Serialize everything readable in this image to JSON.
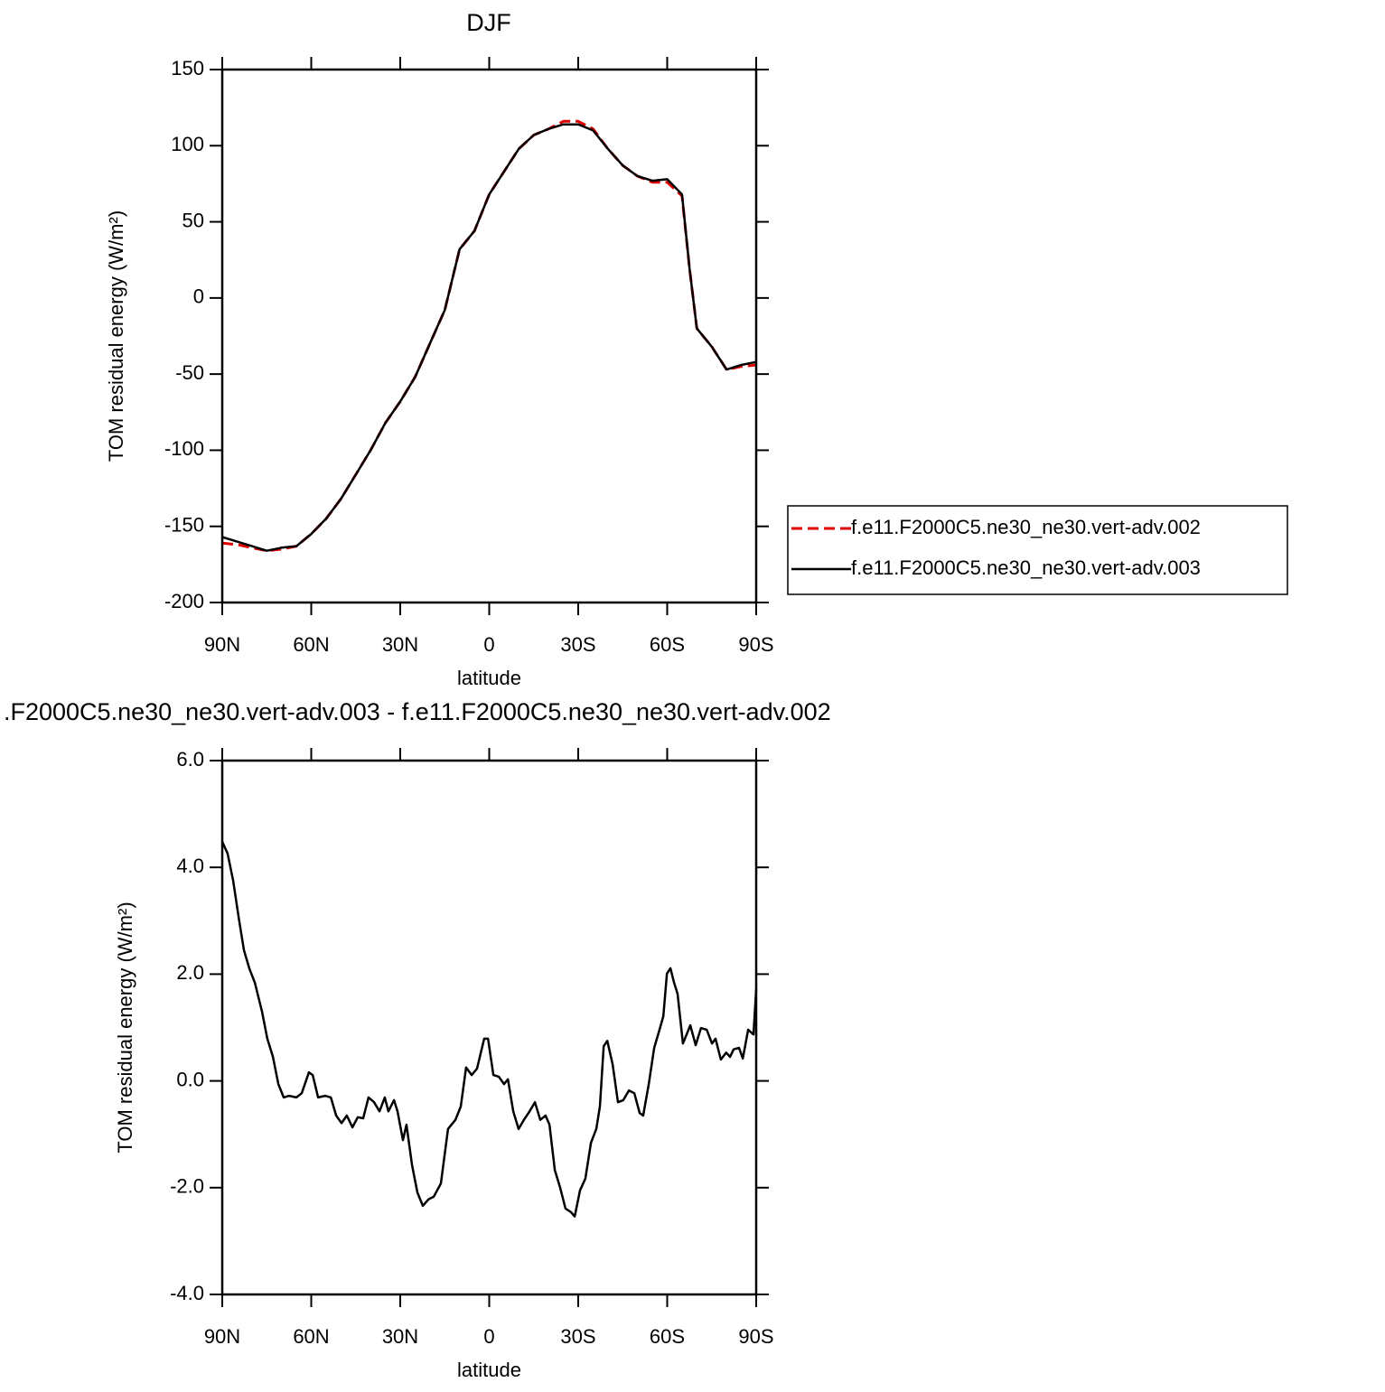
{
  "chart_data": [
    {
      "type": "line",
      "title": "DJF",
      "xlabel": "latitude",
      "ylabel": "TOM residual energy (W/m²)",
      "x": [
        90,
        85,
        80,
        75,
        70,
        65,
        60,
        55,
        50,
        45,
        40,
        35,
        30,
        25,
        20,
        15,
        10,
        5,
        0,
        -5,
        -10,
        -15,
        -20,
        -25,
        -30,
        -35,
        -40,
        -45,
        -50,
        -55,
        -60,
        -65,
        -67.5,
        -70,
        -75,
        -80,
        -85,
        -90
      ],
      "series": [
        {
          "name": "f.e11.F2000C5.ne30_ne30.vert-adv.002",
          "color": "#e00000",
          "linestyle": "dashed",
          "values": [
            -161,
            -162,
            -164,
            -166,
            -165,
            -163,
            -155,
            -145,
            -132,
            -116,
            -100,
            -82,
            -68,
            -52,
            -30,
            -8,
            32,
            44,
            68,
            83,
            98,
            107,
            111,
            116,
            116,
            111,
            98,
            87,
            80,
            76,
            76,
            67,
            20,
            -20,
            -32,
            -47,
            -45,
            -44
          ]
        },
        {
          "name": "f.e11.F2000C5.ne30_ne30.vert-adv.003",
          "color": "#000000",
          "linestyle": "solid",
          "values": [
            -157,
            -160,
            -163,
            -166,
            -164,
            -163,
            -155,
            -145,
            -132,
            -116,
            -100,
            -82,
            -68,
            -52,
            -30,
            -8,
            32,
            44,
            68,
            83,
            98,
            107,
            111,
            114,
            114,
            110,
            98,
            87,
            80,
            77,
            78,
            68,
            20,
            -20,
            -32,
            -47,
            -44,
            -42
          ]
        }
      ],
      "xlim": [
        90,
        -90
      ],
      "xticks": [
        {
          "value": 90,
          "label": "90N"
        },
        {
          "value": 60,
          "label": "60N"
        },
        {
          "value": 30,
          "label": "30N"
        },
        0,
        {
          "value": -30,
          "label": "30S"
        },
        {
          "value": -60,
          "label": "60S"
        },
        {
          "value": -90,
          "label": "90S"
        }
      ],
      "ylim": [
        -200,
        150
      ],
      "yticks": [
        -200,
        -150,
        -100,
        -50,
        0,
        50,
        100,
        150
      ],
      "legend": "outside-right"
    },
    {
      "type": "line",
      "title": ".F2000C5.ne30_ne30.vert-adv.003 - f.e11.F2000C5.ne30_ne30.vert-adv.002",
      "xlabel": "latitude",
      "ylabel": "TOM residual energy (W/m²)",
      "x": [
        90,
        88.2,
        86.3,
        84.5,
        82.7,
        80.9,
        79,
        76.6,
        74.8,
        72.9,
        71.1,
        69.3,
        67.5,
        65,
        63.2,
        60.8,
        59.5,
        57.7,
        55.3,
        53.4,
        51.6,
        49.8,
        48,
        46.1,
        44.3,
        42.5,
        40.7,
        38.8,
        37,
        35.2,
        34,
        32.1,
        30.9,
        29.1,
        27.9,
        26,
        24.2,
        22.4,
        20.5,
        18.7,
        16.3,
        13.9,
        11.4,
        9.6,
        7.8,
        5.9,
        4.1,
        1.7,
        0.4,
        -1.4,
        -3.2,
        -5,
        -6.3,
        -8.1,
        -9.9,
        -11.7,
        -13.6,
        -15.4,
        -17.2,
        -19,
        -20.3,
        -22.1,
        -23.9,
        -25.7,
        -27.6,
        -28.8,
        -30.6,
        -32.4,
        -34.3,
        -36.1,
        -37.3,
        -38.6,
        -39.8,
        -41.6,
        -43.4,
        -45.2,
        -47.1,
        -48.9,
        -50.7,
        -51.9,
        -53.8,
        -55.6,
        -57.4,
        -58.7,
        -59.9,
        -61.1,
        -62.3,
        -63.5,
        -65.3,
        -67.8,
        -69.6,
        -71.4,
        -73.3,
        -75.1,
        -76.3,
        -78.1,
        -79.9,
        -81.2,
        -82.4,
        -84.2,
        -85.5,
        -87.3,
        -89.1,
        -90
      ],
      "values": [
        4.48,
        4.26,
        3.75,
        3.07,
        2.45,
        2.11,
        1.84,
        1.3,
        0.79,
        0.45,
        -0.06,
        -0.31,
        -0.28,
        -0.31,
        -0.23,
        0.16,
        0.11,
        -0.31,
        -0.28,
        -0.31,
        -0.65,
        -0.79,
        -0.65,
        -0.87,
        -0.68,
        -0.7,
        -0.31,
        -0.4,
        -0.57,
        -0.31,
        -0.57,
        -0.36,
        -0.57,
        -1.11,
        -0.82,
        -1.58,
        -2.09,
        -2.34,
        -2.22,
        -2.17,
        -1.92,
        -0.9,
        -0.73,
        -0.48,
        0.25,
        0.11,
        0.23,
        0.79,
        0.79,
        0.11,
        0.08,
        -0.06,
        0.03,
        -0.57,
        -0.9,
        -0.73,
        -0.57,
        -0.4,
        -0.73,
        -0.65,
        -0.82,
        -1.67,
        -2.0,
        -2.39,
        -2.46,
        -2.54,
        -2.05,
        -1.83,
        -1.16,
        -0.9,
        -0.48,
        0.65,
        0.75,
        0.31,
        -0.4,
        -0.36,
        -0.18,
        -0.23,
        -0.6,
        -0.65,
        -0.06,
        0.62,
        0.96,
        1.21,
        2.01,
        2.11,
        1.84,
        1.63,
        0.7,
        1.04,
        0.67,
        0.99,
        0.96,
        0.7,
        0.79,
        0.4,
        0.53,
        0.45,
        0.59,
        0.62,
        0.42,
        0.96,
        0.87,
        1.72
      ],
      "color": "#000000",
      "xlim": [
        90,
        -90
      ],
      "xticks": [
        {
          "value": 90,
          "label": "90N"
        },
        {
          "value": 60,
          "label": "60N"
        },
        {
          "value": 30,
          "label": "30N"
        },
        0,
        {
          "value": -30,
          "label": "30S"
        },
        {
          "value": -60,
          "label": "60S"
        },
        {
          "value": -90,
          "label": "90S"
        }
      ],
      "ylim": [
        -4,
        6
      ],
      "yticks": [
        {
          "value": -4,
          "label": "-4.0"
        },
        {
          "value": -2,
          "label": "-2.0"
        },
        {
          "value": 0,
          "label": "0.0"
        },
        {
          "value": 2,
          "label": "2.0"
        },
        {
          "value": 4,
          "label": "4.0"
        },
        {
          "value": 6,
          "label": "6.0"
        }
      ]
    }
  ]
}
